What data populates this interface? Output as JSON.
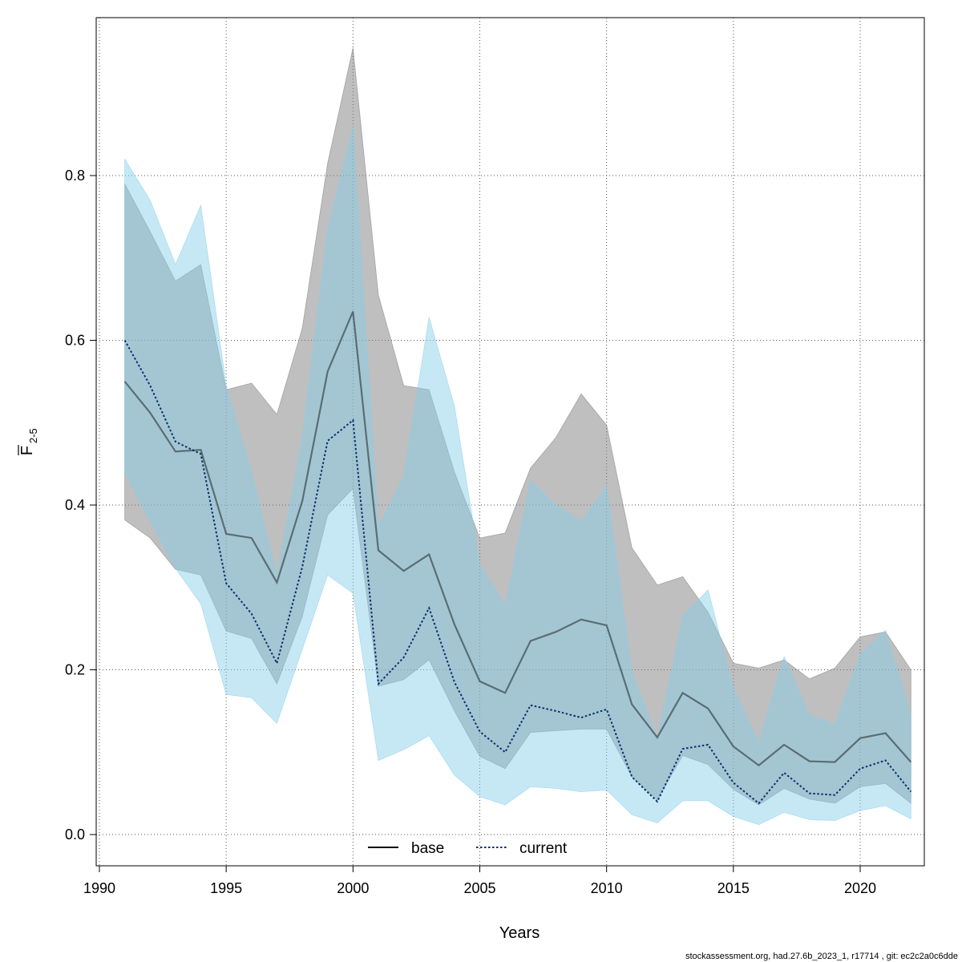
{
  "chart_data": {
    "type": "line",
    "xlabel": "Years",
    "ylabel": "F",
    "ylabel_subscript": "2-5",
    "xlim": [
      1990,
      2023
    ],
    "ylim": [
      0,
      0.95
    ],
    "xticks": [
      "1990",
      "1995",
      "2000",
      "2005",
      "2010",
      "2015",
      "2020"
    ],
    "yticks": [
      "0.0",
      "0.2",
      "0.4",
      "0.6",
      "0.8"
    ],
    "grid": true,
    "legend_position": "bottom-center",
    "footer": "stockassessment.org, had.27.6b_2023_1, r17714 , git: ec2c2a0c6dde",
    "x": [
      1991,
      1992,
      1993,
      1994,
      1995,
      1996,
      1997,
      1998,
      1999,
      2000,
      2001,
      2002,
      2003,
      2004,
      2005,
      2006,
      2007,
      2008,
      2009,
      2010,
      2011,
      2012,
      2013,
      2014,
      2015,
      2016,
      2017,
      2018,
      2019,
      2020,
      2021,
      2022
    ],
    "series": [
      {
        "name": "base",
        "line_style": "solid",
        "color": "#000000",
        "band_color": "#808080",
        "values": [
          0.55,
          0.512,
          0.465,
          0.467,
          0.365,
          0.36,
          0.306,
          0.405,
          0.562,
          0.635,
          0.345,
          0.32,
          0.34,
          0.255,
          0.186,
          0.172,
          0.235,
          0.246,
          0.261,
          0.254,
          0.158,
          0.118,
          0.172,
          0.153,
          0.107,
          0.084,
          0.109,
          0.089,
          0.088,
          0.117,
          0.123,
          0.088
        ],
        "lower": [
          0.382,
          0.36,
          0.322,
          0.315,
          0.247,
          0.238,
          0.183,
          0.265,
          0.388,
          0.42,
          0.18,
          0.188,
          0.212,
          0.15,
          0.095,
          0.08,
          0.124,
          0.126,
          0.128,
          0.128,
          0.07,
          0.042,
          0.096,
          0.085,
          0.055,
          0.036,
          0.056,
          0.043,
          0.038,
          0.058,
          0.062,
          0.038
        ],
        "upper": [
          0.79,
          0.732,
          0.672,
          0.692,
          0.54,
          0.548,
          0.51,
          0.615,
          0.815,
          0.955,
          0.655,
          0.545,
          0.54,
          0.44,
          0.36,
          0.366,
          0.445,
          0.482,
          0.535,
          0.497,
          0.348,
          0.303,
          0.313,
          0.27,
          0.208,
          0.202,
          0.212,
          0.189,
          0.202,
          0.24,
          0.246,
          0.2
        ]
      },
      {
        "name": "current",
        "line_style": "dotted",
        "color": "#08306b",
        "band_color": "#87ceeb",
        "values": [
          0.6,
          0.545,
          0.477,
          0.462,
          0.305,
          0.268,
          0.208,
          0.325,
          0.478,
          0.503,
          0.183,
          0.215,
          0.275,
          0.185,
          0.125,
          0.1,
          0.157,
          0.15,
          0.142,
          0.152,
          0.07,
          0.04,
          0.104,
          0.109,
          0.063,
          0.038,
          0.075,
          0.05,
          0.048,
          0.08,
          0.09,
          0.052
        ],
        "lower": [
          0.44,
          0.38,
          0.323,
          0.28,
          0.17,
          0.166,
          0.135,
          0.225,
          0.315,
          0.293,
          0.09,
          0.103,
          0.12,
          0.072,
          0.046,
          0.036,
          0.058,
          0.056,
          0.052,
          0.054,
          0.024,
          0.014,
          0.041,
          0.041,
          0.022,
          0.012,
          0.027,
          0.018,
          0.017,
          0.029,
          0.035,
          0.019
        ],
        "upper": [
          0.82,
          0.77,
          0.692,
          0.764,
          0.545,
          0.44,
          0.315,
          0.482,
          0.735,
          0.86,
          0.375,
          0.435,
          0.628,
          0.52,
          0.328,
          0.278,
          0.43,
          0.4,
          0.38,
          0.423,
          0.197,
          0.117,
          0.265,
          0.297,
          0.178,
          0.112,
          0.216,
          0.145,
          0.134,
          0.218,
          0.248,
          0.145
        ]
      }
    ]
  }
}
